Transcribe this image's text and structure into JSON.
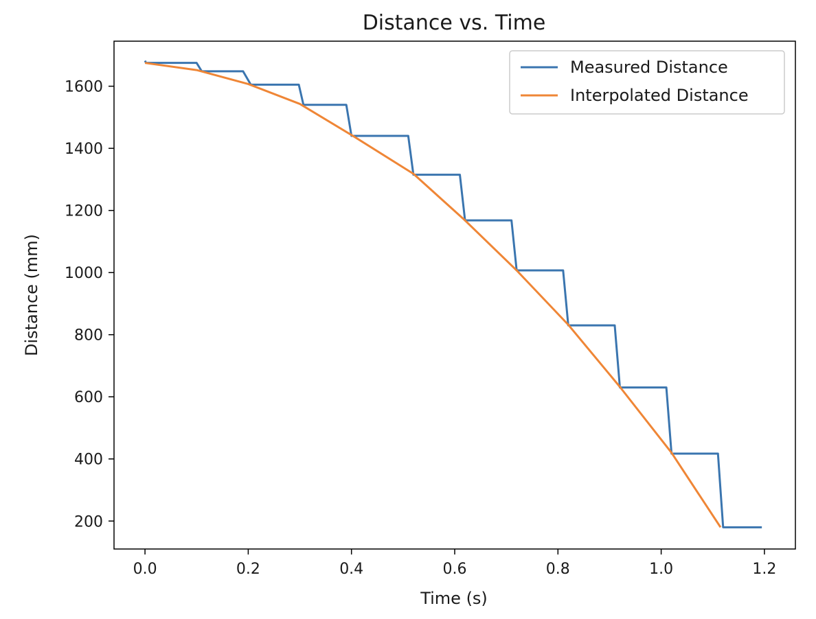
{
  "chart_data": {
    "type": "line",
    "title": "Distance vs. Time",
    "xlabel": "Time (s)",
    "ylabel": "Distance (mm)",
    "xlim": [
      -0.06,
      1.26
    ],
    "ylim": [
      110,
      1745
    ],
    "xticks": [
      0.0,
      0.2,
      0.4,
      0.6,
      0.8,
      1.0,
      1.2
    ],
    "xtick_labels": [
      "0.0",
      "0.2",
      "0.4",
      "0.6",
      "0.8",
      "1.0",
      "1.2"
    ],
    "yticks": [
      200,
      400,
      600,
      800,
      1000,
      1200,
      1400,
      1600
    ],
    "ytick_labels": [
      "200",
      "400",
      "600",
      "800",
      "1000",
      "1200",
      "1400",
      "1600"
    ],
    "grid": false,
    "legend_position": "top-right",
    "series": [
      {
        "name": "Measured Distance",
        "color": "#3a75af",
        "x": [
          0.0,
          0.002,
          0.1,
          0.11,
          0.19,
          0.205,
          0.298,
          0.307,
          0.39,
          0.4,
          0.51,
          0.52,
          0.61,
          0.62,
          0.71,
          0.72,
          0.81,
          0.82,
          0.91,
          0.92,
          1.01,
          1.02,
          1.11,
          1.12,
          1.195
        ],
        "y": [
          1682,
          1675,
          1675,
          1648,
          1648,
          1605,
          1605,
          1540,
          1540,
          1440,
          1440,
          1315,
          1315,
          1168,
          1168,
          1007,
          1007,
          830,
          830,
          630,
          630,
          417,
          417,
          180,
          180
        ]
      },
      {
        "name": "Interpolated Distance",
        "color": "#ef8636",
        "x": [
          0.0,
          0.1,
          0.2,
          0.3,
          0.4,
          0.52,
          0.62,
          0.72,
          0.82,
          0.92,
          1.02,
          1.115
        ],
        "y": [
          1675,
          1652,
          1607,
          1543,
          1443,
          1318,
          1168,
          1007,
          832,
          632,
          420,
          180
        ]
      }
    ]
  }
}
